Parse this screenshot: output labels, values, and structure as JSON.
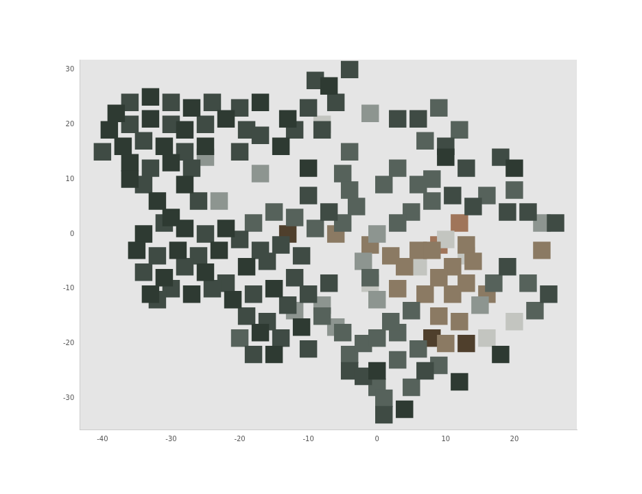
{
  "chart_data": {
    "type": "scatter",
    "marker": "square",
    "grid": false,
    "xlim": [
      -43.3,
      29.1
    ],
    "ylim": [
      -35.7,
      31.8
    ],
    "xticks": [
      -40,
      -30,
      -20,
      -10,
      0,
      10,
      20
    ],
    "yticks": [
      -30,
      -20,
      -10,
      0,
      10,
      20,
      30
    ],
    "series": [
      {
        "color": "#2e3a32",
        "x": [
          -38,
          -33,
          -27,
          -39,
          -33,
          -28,
          -22,
          -37,
          -31,
          -25,
          -36,
          -30,
          -36,
          -28,
          -32,
          -30,
          -34,
          -28,
          -22,
          -35,
          -29,
          -23,
          -31,
          -25,
          -19,
          -33,
          -27,
          -21,
          -15,
          -17,
          -13,
          -14,
          -10,
          -7,
          -17,
          -11,
          -15,
          0,
          4,
          10,
          20,
          18,
          12
        ],
        "values": [
          22,
          25,
          23,
          19,
          21,
          19,
          21,
          16,
          16,
          16,
          13,
          13,
          10,
          9,
          6,
          3,
          0,
          1,
          1,
          -3,
          -3,
          -3,
          -8,
          -7,
          -6,
          -11,
          -11,
          -12,
          -10,
          24,
          21,
          16,
          12,
          27,
          -18,
          -17,
          -22,
          -25,
          -32,
          14,
          12,
          -22,
          -27
        ]
      },
      {
        "color": "#3f4b44",
        "x": [
          -36,
          -30,
          -24,
          -36,
          -30,
          -25,
          -40,
          -34,
          -28,
          -33,
          -27,
          -34,
          -26,
          -20,
          -19,
          -17,
          -20,
          -31,
          -25,
          -20,
          -32,
          -26,
          -34,
          -28,
          -22,
          -16,
          -30,
          -24,
          -18,
          -12,
          -32,
          -17,
          -14,
          -11,
          -19,
          -16,
          -13,
          -10,
          -7,
          -14,
          -18,
          -10,
          -9,
          -6,
          -10,
          -8,
          -12,
          -10,
          -7,
          -4,
          3,
          6,
          10,
          13,
          11,
          14,
          18,
          19,
          22,
          26,
          19,
          25,
          -4,
          1,
          7,
          -2
        ],
        "values": [
          24,
          24,
          24,
          20,
          20,
          20,
          15,
          17,
          15,
          12,
          12,
          9,
          6,
          23,
          19,
          18,
          15,
          2,
          0,
          -1,
          -4,
          -4,
          -7,
          -6,
          -9,
          -5,
          -10,
          -10,
          -11,
          -8,
          -12,
          -3,
          -2,
          -4,
          -15,
          -16,
          -13,
          -11,
          -9,
          -19,
          -22,
          -21,
          28,
          24,
          23,
          19,
          19,
          7,
          4,
          30,
          21,
          21,
          16,
          12,
          7,
          5,
          14,
          4,
          4,
          2,
          -6,
          -11,
          -25,
          -33,
          -25,
          -26
        ]
      },
      {
        "color": "#56625b",
        "x": [
          -18,
          -15,
          -12,
          -9,
          -20,
          -8,
          -5,
          -4,
          -5,
          -4,
          -3,
          -5,
          9,
          7,
          12,
          8,
          20,
          16,
          22,
          17,
          23,
          5,
          1,
          6,
          8,
          3,
          3,
          -1,
          -4,
          -2,
          0,
          3,
          6,
          3,
          0,
          5,
          1,
          9,
          2,
          5
        ],
        "values": [
          2,
          4,
          3,
          1,
          -19,
          -15,
          -18,
          15,
          11,
          8,
          5,
          2,
          23,
          17,
          19,
          10,
          8,
          7,
          -9,
          -9,
          -14,
          4,
          9,
          9,
          6,
          12,
          2,
          -8,
          -22,
          -20,
          -19,
          -18,
          -21,
          -23,
          -28,
          -28,
          -30,
          -24,
          -16,
          -14
        ]
      },
      {
        "color": "#8d9590",
        "x": [
          -25,
          -17,
          -23,
          -12,
          -8,
          -1,
          -6,
          0,
          -2,
          0,
          15,
          24
        ],
        "values": [
          14,
          11,
          6,
          -14,
          -13,
          22,
          -17,
          0,
          -5,
          -12,
          -13,
          2
        ]
      },
      {
        "color": "#8b7a63",
        "x": [
          6,
          8,
          13,
          14,
          11,
          9,
          7,
          11,
          13,
          16,
          9,
          12,
          10,
          24,
          2,
          4,
          3,
          -1,
          -6
        ],
        "values": [
          -3,
          -3,
          -2,
          -5,
          -6,
          -8,
          -11,
          -11,
          -9,
          -11,
          -15,
          -16,
          -20,
          -3,
          -4,
          -6,
          -10,
          -2,
          0
        ]
      },
      {
        "color": "#c3c5c0",
        "x": [
          16,
          10,
          13,
          -1,
          -8,
          20,
          6
        ],
        "values": [
          -19,
          -1,
          -4,
          -9,
          20,
          -16,
          -6
        ]
      },
      {
        "color": "#a0755a",
        "x": [
          12,
          9
        ],
        "values": [
          2,
          -2
        ]
      },
      {
        "color": "#4f3f2c",
        "x": [
          8,
          -13,
          13
        ],
        "values": [
          -19,
          0,
          -20
        ]
      }
    ]
  }
}
